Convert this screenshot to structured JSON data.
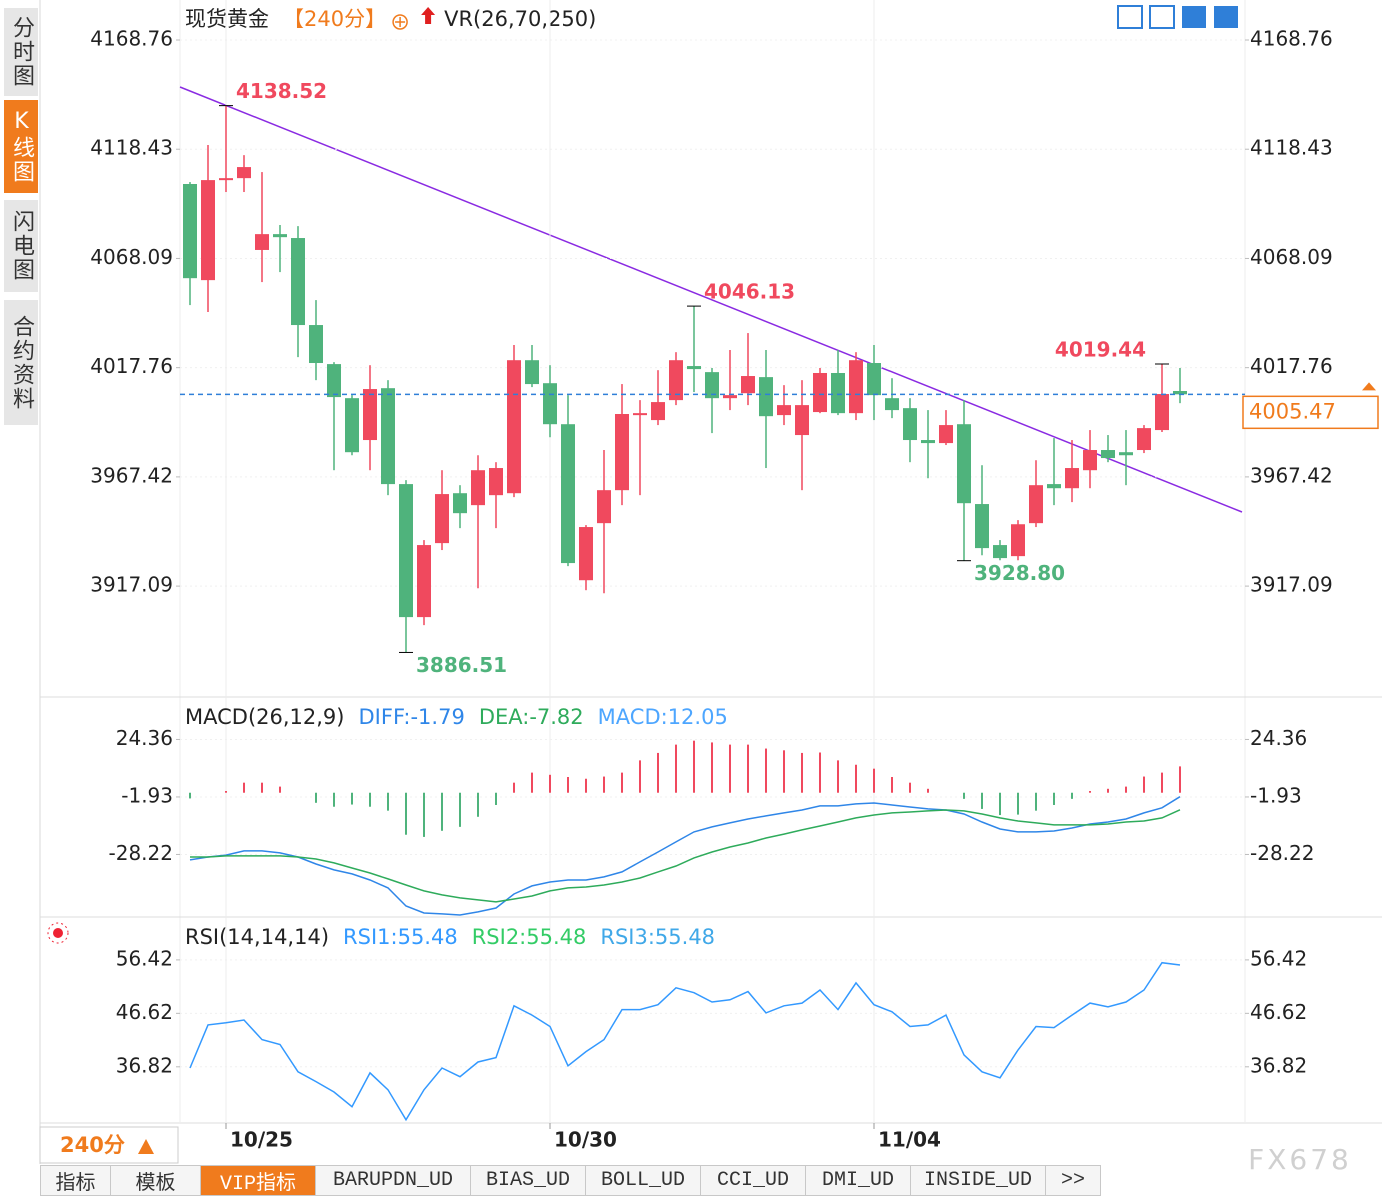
{
  "chart_data": [
    {
      "type": "candlestick",
      "title": "现货黄金",
      "period": "【240分】",
      "indicator": "VR(26,70,250)",
      "categories": [
        null,
        null,
        "10/25",
        null,
        null,
        null,
        null,
        null,
        null,
        null,
        null,
        null,
        null,
        null,
        null,
        null,
        null,
        null,
        null,
        null,
        "10/30",
        null,
        null,
        null,
        null,
        null,
        null,
        null,
        null,
        null,
        null,
        null,
        null,
        null,
        null,
        null,
        null,
        null,
        "11/04",
        null,
        null,
        null,
        null,
        null,
        null,
        null,
        null,
        null,
        null,
        null,
        null,
        null,
        null,
        null,
        null,
        null
      ],
      "open": [
        4102.4,
        4058.1,
        4104.2,
        4105.1,
        4072.0,
        4079.3,
        4077.5,
        4037.4,
        4019.4,
        4003.7,
        3984.4,
        4008.3,
        3964.1,
        3902.8,
        3936.9,
        3959.9,
        3954.4,
        3959.0,
        3959.9,
        4021.2,
        4010.6,
        3991.7,
        3919.8,
        3946.1,
        3961.3,
        3995.9,
        3993.6,
        4002.8,
        4018.5,
        4015.7,
        4003.7,
        4006.0,
        4013.4,
        3995.9,
        3986.7,
        3997.3,
        4015.3,
        3996.8,
        4019.9,
        4003.7,
        3999.1,
        3984.4,
        3983.0,
        3991.7,
        3954.9,
        3936.0,
        3930.9,
        3946.1,
        3964.1,
        3962.2,
        3970.5,
        3979.8,
        3978.8,
        3979.8,
        3989.0,
        4007.0
      ],
      "high": [
        4103.3,
        4120.4,
        4138.52,
        4115.7,
        4107.9,
        4083.5,
        4083.0,
        4048.9,
        4020.3,
        4005.1,
        4018.9,
        4012.0,
        3965.9,
        3938.3,
        3970.5,
        3963.6,
        3977.4,
        3974.2,
        4028.2,
        4028.2,
        4018.9,
        4005.1,
        3945.2,
        3979.8,
        4010.2,
        4002.8,
        4016.6,
        4024.9,
        4046.13,
        4017.6,
        4025.9,
        4033.7,
        4025.9,
        4009.7,
        4012.0,
        4017.6,
        4025.9,
        4024.9,
        4028.2,
        4012.9,
        4003.7,
        3998.2,
        3998.2,
        4002.8,
        3972.8,
        3938.3,
        3947.5,
        3975.1,
        3985.3,
        3984.4,
        3989.0,
        3986.7,
        3989.0,
        3991.3,
        4019.44,
        4017.6
      ],
      "low": [
        4046.6,
        4043.4,
        4098.7,
        4098.7,
        4057.2,
        4061.8,
        4022.6,
        4012.0,
        3970.5,
        3977.4,
        3970.5,
        3959.0,
        3886.51,
        3899.1,
        3933.7,
        3943.8,
        3916.1,
        3943.8,
        3958.1,
        4008.8,
        3985.7,
        3926.3,
        3915.2,
        3913.8,
        3954.4,
        3959.0,
        3991.3,
        4000.5,
        4006.5,
        3987.6,
        3998.2,
        4000.5,
        3971.5,
        3991.3,
        3961.3,
        3996.8,
        3995.9,
        3993.6,
        3993.6,
        3994.5,
        3974.2,
        3966.8,
        3982.1,
        3928.8,
        3931.3,
        3929.0,
        3929.0,
        3944.3,
        3954.4,
        3955.8,
        3962.2,
        3974.2,
        3963.6,
        3978.4,
        3988.1,
        4001.4
      ],
      "close": [
        4059.0,
        4104.2,
        4105.1,
        4110.2,
        4079.3,
        4077.9,
        4037.4,
        4019.9,
        4004.2,
        3978.8,
        4007.9,
        3964.1,
        3902.8,
        3936.0,
        3959.5,
        3950.7,
        3970.5,
        3971.5,
        4021.2,
        4010.2,
        3991.7,
        3927.7,
        3944.3,
        3961.3,
        3996.4,
        3996.8,
        4001.9,
        4021.2,
        4017.1,
        4003.7,
        4005.1,
        4013.9,
        3995.4,
        4000.5,
        4000.5,
        4015.3,
        3996.8,
        4021.2,
        4005.1,
        3998.2,
        3984.4,
        3983.0,
        3991.3,
        3955.3,
        3934.6,
        3930.0,
        3945.6,
        3963.6,
        3962.2,
        3971.5,
        3979.8,
        3976.1,
        3977.4,
        3989.9,
        4005.6,
        4005.47
      ],
      "high_labels": [
        null,
        null,
        "4138.52",
        null,
        null,
        null,
        null,
        null,
        null,
        null,
        null,
        null,
        null,
        null,
        null,
        null,
        null,
        null,
        null,
        null,
        null,
        null,
        null,
        null,
        null,
        null,
        null,
        null,
        "4046.13",
        null,
        null,
        null,
        null,
        null,
        null,
        null,
        null,
        null,
        null,
        null,
        null,
        null,
        null,
        null,
        null,
        null,
        null,
        null,
        null,
        null,
        null,
        null,
        null,
        null,
        "4019.44",
        null
      ],
      "low_labels": [
        null,
        null,
        null,
        null,
        null,
        null,
        null,
        null,
        null,
        null,
        null,
        null,
        "3886.51",
        null,
        null,
        null,
        null,
        null,
        null,
        null,
        null,
        null,
        null,
        null,
        null,
        null,
        null,
        null,
        null,
        null,
        null,
        null,
        null,
        null,
        null,
        null,
        null,
        null,
        null,
        null,
        null,
        null,
        null,
        "3928.80",
        null,
        null,
        null,
        null,
        null,
        null,
        null,
        null,
        null,
        null,
        null,
        null
      ],
      "up_color": "#f0495e",
      "down_color": "#4fb37c",
      "label_up_color": "#f0495e",
      "label_down_color": "#4fb37c",
      "ylim": [
        3866.9,
        4187.2
      ],
      "yticks": [
        4168.76,
        4118.43,
        4068.09,
        4017.76,
        3967.42,
        3917.09
      ],
      "grid": true
    },
    {
      "type": "macd",
      "title": "MACD(26,12,9)",
      "series": [
        {
          "name": "DIFF:-1.79",
          "color": "#2f86e8",
          "type": "line",
          "values": [
            -30.7,
            -29.4,
            -28.5,
            -26.6,
            -26.6,
            -27.5,
            -29.4,
            -32.6,
            -35.3,
            -37.1,
            -39.9,
            -43.5,
            -51.8,
            -55.0,
            -55.4,
            -55.9,
            -54.5,
            -52.7,
            -46.3,
            -42.6,
            -40.8,
            -39.9,
            -39.9,
            -38.5,
            -36.2,
            -31.6,
            -27.1,
            -22.5,
            -17.9,
            -15.6,
            -13.8,
            -12.0,
            -10.6,
            -9.2,
            -7.9,
            -6.0,
            -6.0,
            -5.1,
            -4.7,
            -5.6,
            -6.5,
            -7.4,
            -7.9,
            -9.7,
            -13.4,
            -16.6,
            -17.9,
            -17.9,
            -17.5,
            -16.1,
            -14.3,
            -13.4,
            -12.0,
            -9.2,
            -6.9,
            -1.79
          ]
        },
        {
          "name": "DEA:-7.82",
          "color": "#2eab5b",
          "type": "line",
          "values": [
            -29.4,
            -29.4,
            -28.9,
            -28.9,
            -28.9,
            -28.9,
            -29.4,
            -30.3,
            -32.1,
            -34.4,
            -36.7,
            -39.4,
            -42.2,
            -44.9,
            -46.7,
            -48.1,
            -49.0,
            -49.9,
            -48.6,
            -47.2,
            -44.9,
            -43.5,
            -43.1,
            -42.2,
            -40.8,
            -39.0,
            -36.2,
            -33.5,
            -29.8,
            -27.1,
            -24.8,
            -23.0,
            -20.7,
            -18.9,
            -17.0,
            -15.2,
            -13.4,
            -11.5,
            -10.2,
            -9.2,
            -8.8,
            -8.3,
            -7.9,
            -8.3,
            -9.7,
            -11.5,
            -12.9,
            -13.8,
            -14.7,
            -14.7,
            -14.7,
            -14.3,
            -13.4,
            -12.9,
            -11.5,
            -7.82
          ]
        },
        {
          "name": "MACD:12.05",
          "color": "#4da6ff",
          "type": "bar",
          "up_color": "#f0495e",
          "down_color": "#4fb37c",
          "values": [
            -2.6,
            0,
            0.8,
            4.6,
            4.6,
            2.8,
            0,
            -4.6,
            -6.4,
            -5.4,
            -6.4,
            -8.2,
            -19.2,
            -20.2,
            -17.4,
            -15.6,
            -11.0,
            -5.6,
            4.6,
            9.2,
            8.2,
            7.2,
            6.4,
            7.4,
            9.2,
            14.8,
            18.2,
            22.0,
            23.8,
            23.0,
            22.0,
            22.0,
            20.2,
            19.4,
            18.2,
            18.4,
            14.8,
            12.8,
            11.0,
            7.2,
            4.6,
            1.8,
            0,
            -2.8,
            -7.4,
            -10.2,
            -10.0,
            -8.2,
            -5.6,
            -2.8,
            0.8,
            1.8,
            2.8,
            7.4,
            9.2,
            12.05
          ]
        }
      ],
      "ylim": [
        -55.9,
        42.4
      ],
      "yticks": [
        24.36,
        -1.93,
        -28.22
      ],
      "grid": true
    },
    {
      "type": "line",
      "title": "RSI(14,14,14)",
      "series": [
        {
          "name": "RSI1:55.48",
          "color": "#3399ff",
          "values": [
            36.6,
            44.5,
            44.9,
            45.4,
            41.8,
            40.9,
            35.9,
            34.1,
            32.2,
            29.5,
            35.7,
            32.6,
            27.1,
            32.6,
            36.6,
            35.0,
            37.7,
            38.5,
            48.0,
            46.3,
            44.2,
            37.0,
            39.6,
            41.8,
            47.3,
            47.3,
            48.2,
            51.3,
            50.4,
            48.7,
            49.1,
            50.6,
            46.7,
            48.0,
            48.5,
            50.9,
            47.3,
            52.2,
            48.2,
            46.9,
            44.2,
            44.5,
            46.3,
            39.0,
            35.9,
            34.8,
            39.9,
            44.2,
            44.0,
            46.3,
            48.5,
            47.8,
            48.7,
            50.9,
            55.9,
            55.48
          ]
        },
        {
          "name": "RSI2:55.48",
          "color": "#33cc66"
        },
        {
          "name": "RSI3:55.48",
          "color": "#40a8e8"
        }
      ],
      "ylim": [
        26.7,
        64.1
      ],
      "yticks": [
        56.42,
        46.62,
        36.82
      ],
      "grid": true
    }
  ],
  "sidebar": {
    "items": [
      "分时图",
      "K线图",
      "闪电图",
      "合约资料"
    ],
    "active": 1
  },
  "period_selector": "240分",
  "tabs": {
    "items": [
      "指标",
      "模板",
      "VIP指标",
      "BARUPDN_UD",
      "BIAS_UD",
      "BOLL_UD",
      "CCI_UD",
      "DMI_UD",
      "INSIDE_UD",
      ">>"
    ],
    "active": 2
  },
  "watermark": "FX678"
}
